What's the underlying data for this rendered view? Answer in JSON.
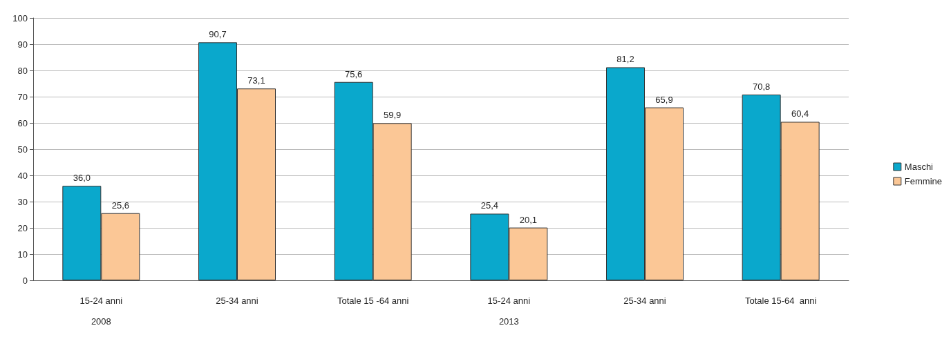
{
  "chart_data": {
    "type": "bar",
    "categories": [
      "15-24 anni\n2008",
      "25-34 anni",
      "Totale 15 -64 anni",
      "15-24 anni\n2013",
      "25-34 anni",
      "Totale 15-64  anni"
    ],
    "series": [
      {
        "name": "Maschi",
        "color": "#0aa8cc",
        "values": [
          36.0,
          90.7,
          75.6,
          25.4,
          81.2,
          70.8
        ],
        "value_labels": [
          "36,0",
          "90,7",
          "75,6",
          "25,4",
          "81,2",
          "70,8"
        ]
      },
      {
        "name": "Femmine",
        "color": "#fbc796",
        "values": [
          25.6,
          73.1,
          59.9,
          20.1,
          65.9,
          60.4
        ],
        "value_labels": [
          "25,6",
          "73,1",
          "59,9",
          "20,1",
          "65,9",
          "60,4"
        ]
      }
    ],
    "ylim": [
      0,
      100
    ],
    "yticks": [
      0,
      10,
      20,
      30,
      40,
      50,
      60,
      70,
      80,
      90,
      100
    ],
    "grid": "y",
    "legend": "right"
  }
}
